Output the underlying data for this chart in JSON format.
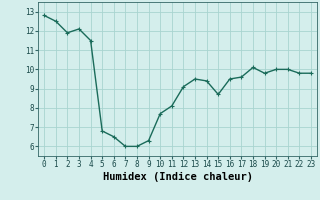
{
  "x": [
    0,
    1,
    2,
    3,
    4,
    5,
    6,
    7,
    8,
    9,
    10,
    11,
    12,
    13,
    14,
    15,
    16,
    17,
    18,
    19,
    20,
    21,
    22,
    23
  ],
  "y": [
    12.8,
    12.5,
    11.9,
    12.1,
    11.5,
    6.8,
    6.5,
    6.0,
    6.0,
    6.3,
    7.7,
    8.1,
    9.1,
    9.5,
    9.4,
    8.7,
    9.5,
    9.6,
    10.1,
    9.8,
    10.0,
    10.0,
    9.8,
    9.8
  ],
  "line_color": "#1a6b5a",
  "marker": "+",
  "marker_size": 3,
  "bg_color": "#d4eeec",
  "grid_color": "#a8d4d0",
  "xlabel": "Humidex (Indice chaleur)",
  "xlim": [
    -0.5,
    23.5
  ],
  "ylim": [
    5.5,
    13.5
  ],
  "yticks": [
    6,
    7,
    8,
    9,
    10,
    11,
    12,
    13
  ],
  "xticks": [
    0,
    1,
    2,
    3,
    4,
    5,
    6,
    7,
    8,
    9,
    10,
    11,
    12,
    13,
    14,
    15,
    16,
    17,
    18,
    19,
    20,
    21,
    22,
    23
  ],
  "tick_fontsize": 5.5,
  "xlabel_fontsize": 7.5,
  "line_width": 1.0
}
